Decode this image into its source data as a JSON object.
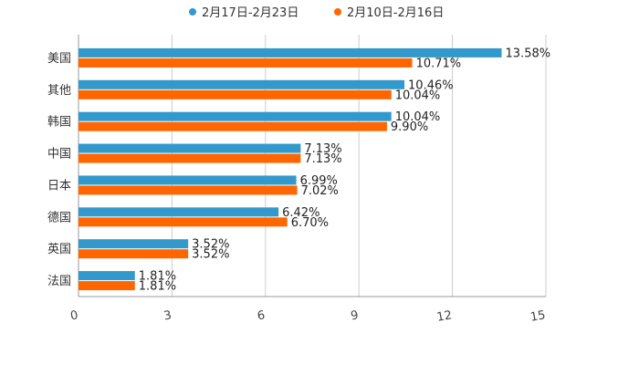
{
  "chart_data": {
    "type": "bar",
    "orientation": "horizontal",
    "categories": [
      "美国",
      "其他",
      "韩国",
      "中国",
      "日本",
      "德国",
      "英国",
      "法国"
    ],
    "series": [
      {
        "name": "2月17日-2月23日",
        "color": "#3399cc",
        "values": [
          13.58,
          10.46,
          10.04,
          7.13,
          6.99,
          6.42,
          3.52,
          1.81
        ],
        "labels": [
          "13.58%",
          "10.46%",
          "10.04%",
          "7.13%",
          "6.99%",
          "6.42%",
          "3.52%",
          "1.81%"
        ]
      },
      {
        "name": "2月10日-2月16日",
        "color": "#ff6600",
        "values": [
          10.71,
          10.04,
          9.9,
          7.13,
          7.02,
          6.7,
          3.52,
          1.81
        ],
        "labels": [
          "10.71%",
          "10.04%",
          "9.90%",
          "7.13%",
          "7.02%",
          "6.70%",
          "3.52%",
          "1.81%"
        ]
      }
    ],
    "xlim": [
      0,
      15
    ],
    "xticks": [
      "0",
      "3",
      "6",
      "9",
      "12",
      "15"
    ],
    "grid": true,
    "legend_position": "top-center",
    "title": "",
    "xlabel": "",
    "ylabel": ""
  }
}
